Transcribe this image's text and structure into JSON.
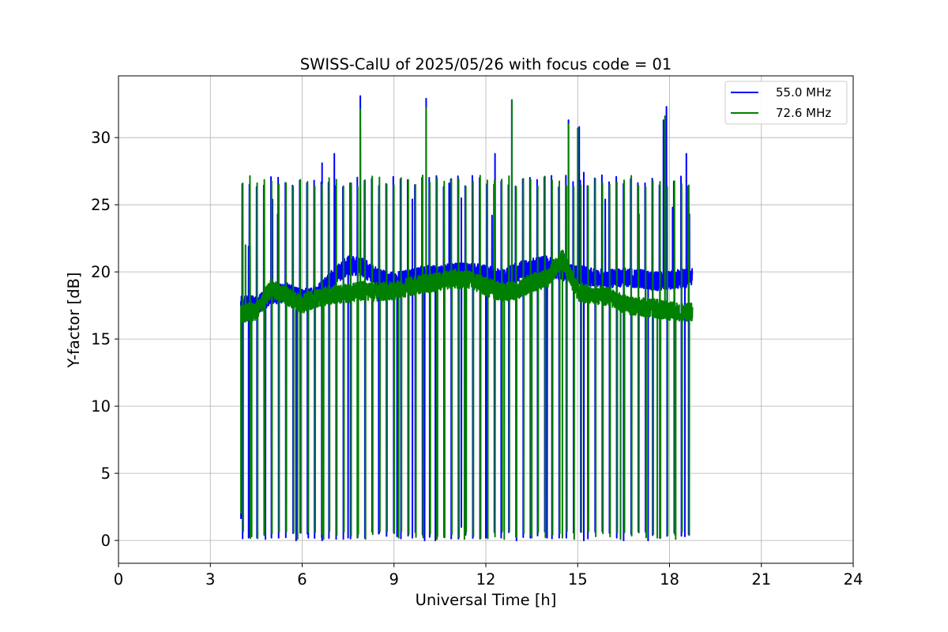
{
  "chart_data": {
    "type": "line",
    "title": "SWISS-CalU of 2025/05/26 with focus code = 01",
    "xlabel": "Universal Time [h]",
    "ylabel": "Y-factor [dB]",
    "xlim": [
      0,
      24
    ],
    "ylim": [
      -1.7,
      34.6
    ],
    "xticks": [
      0,
      3,
      6,
      9,
      12,
      15,
      18,
      21,
      24
    ],
    "yticks": [
      0,
      5,
      10,
      15,
      20,
      25,
      30
    ],
    "grid": true,
    "legend_position": "top-right",
    "x_range_of_data": [
      4.0,
      18.75
    ],
    "series": [
      {
        "name": "55.0 MHz",
        "color": "#0000ff",
        "baseline": [
          [
            4.0,
            17.5
          ],
          [
            4.5,
            17.5
          ],
          [
            5.0,
            18.2
          ],
          [
            5.5,
            18.5
          ],
          [
            6.0,
            18.0
          ],
          [
            6.5,
            18.3
          ],
          [
            7.0,
            19.5
          ],
          [
            7.5,
            20.5
          ],
          [
            8.0,
            20.3
          ],
          [
            8.5,
            19.5
          ],
          [
            9.0,
            19.3
          ],
          [
            9.5,
            19.5
          ],
          [
            10.0,
            19.8
          ],
          [
            10.5,
            19.8
          ],
          [
            11.0,
            20.0
          ],
          [
            11.5,
            20.0
          ],
          [
            12.0,
            19.8
          ],
          [
            12.5,
            19.5
          ],
          [
            13.0,
            20.0
          ],
          [
            13.5,
            20.3
          ],
          [
            14.0,
            20.5
          ],
          [
            14.5,
            20.0
          ],
          [
            15.0,
            19.8
          ],
          [
            15.5,
            19.6
          ],
          [
            16.0,
            19.5
          ],
          [
            16.5,
            19.6
          ],
          [
            17.0,
            19.5
          ],
          [
            17.5,
            19.3
          ],
          [
            18.0,
            19.4
          ],
          [
            18.5,
            19.5
          ],
          [
            18.75,
            19.6
          ]
        ],
        "peaks": [
          [
            4.05,
            24.3
          ],
          [
            4.25,
            21.9
          ],
          [
            5.03,
            25.4
          ],
          [
            5.2,
            24.3
          ],
          [
            6.65,
            28.1
          ],
          [
            7.05,
            28.8
          ],
          [
            7.6,
            26.6
          ],
          [
            7.9,
            33.1
          ],
          [
            8.5,
            25.0
          ],
          [
            9.6,
            25.4
          ],
          [
            10.05,
            32.9
          ],
          [
            10.8,
            26.6
          ],
          [
            11.2,
            25.5
          ],
          [
            12.2,
            24.2
          ],
          [
            12.3,
            28.8
          ],
          [
            12.85,
            32.8
          ],
          [
            14.7,
            31.3
          ],
          [
            15.05,
            30.8
          ],
          [
            15.2,
            27.4
          ],
          [
            15.9,
            25.4
          ],
          [
            17.0,
            24.3
          ],
          [
            17.8,
            31.3
          ],
          [
            17.9,
            32.3
          ],
          [
            18.1,
            24.8
          ],
          [
            18.55,
            28.8
          ],
          [
            18.65,
            24.3
          ]
        ],
        "dips": [
          [
            4.0,
            1.6
          ],
          [
            4.25,
            0.2
          ],
          [
            4.8,
            0.1
          ],
          [
            5.8,
            0.0
          ],
          [
            6.2,
            0.2
          ],
          [
            6.65,
            0.0
          ],
          [
            7.5,
            0.2
          ],
          [
            8.5,
            0.5
          ],
          [
            9.1,
            0.3
          ],
          [
            9.6,
            0.2
          ],
          [
            10.0,
            0.0
          ],
          [
            10.35,
            0.0
          ],
          [
            11.2,
            1.0
          ],
          [
            12.0,
            0.2
          ],
          [
            12.5,
            0.2
          ],
          [
            13.0,
            0.0
          ],
          [
            14.0,
            0.2
          ],
          [
            15.2,
            0.0
          ],
          [
            16.5,
            0.0
          ],
          [
            17.3,
            0.0
          ],
          [
            18.5,
            0.3
          ]
        ]
      },
      {
        "name": "72.6 MHz",
        "color": "#008000",
        "baseline": [
          [
            4.0,
            16.9
          ],
          [
            4.5,
            17.1
          ],
          [
            5.0,
            18.8
          ],
          [
            5.5,
            18.2
          ],
          [
            6.0,
            17.6
          ],
          [
            6.5,
            18.1
          ],
          [
            7.0,
            18.3
          ],
          [
            7.5,
            18.4
          ],
          [
            8.0,
            18.6
          ],
          [
            8.5,
            18.5
          ],
          [
            9.0,
            18.6
          ],
          [
            9.5,
            18.9
          ],
          [
            10.0,
            19.1
          ],
          [
            10.5,
            19.3
          ],
          [
            11.0,
            19.5
          ],
          [
            11.5,
            19.4
          ],
          [
            12.0,
            18.9
          ],
          [
            12.5,
            18.5
          ],
          [
            13.0,
            18.6
          ],
          [
            13.5,
            19.2
          ],
          [
            14.0,
            19.5
          ],
          [
            14.5,
            21.0
          ],
          [
            15.0,
            18.5
          ],
          [
            15.5,
            18.3
          ],
          [
            16.0,
            18.2
          ],
          [
            16.5,
            17.6
          ],
          [
            17.0,
            17.4
          ],
          [
            17.5,
            17.3
          ],
          [
            18.0,
            17.1
          ],
          [
            18.5,
            17.0
          ],
          [
            18.75,
            17.0
          ]
        ],
        "peaks": [
          [
            4.15,
            22.0
          ],
          [
            4.3,
            21.9
          ],
          [
            7.9,
            32.1
          ],
          [
            10.05,
            32.2
          ],
          [
            12.85,
            32.8
          ],
          [
            14.7,
            31.0
          ],
          [
            15.0,
            30.7
          ],
          [
            17.85,
            31.6
          ]
        ],
        "dips": [
          [
            4.0,
            2.0
          ],
          [
            4.35,
            0.3
          ],
          [
            5.85,
            0.1
          ],
          [
            6.7,
            0.1
          ],
          [
            7.8,
            0.2
          ],
          [
            9.15,
            0.2
          ],
          [
            10.4,
            0.1
          ],
          [
            11.3,
            0.1
          ],
          [
            12.6,
            0.1
          ],
          [
            13.5,
            0.2
          ],
          [
            14.5,
            0.2
          ],
          [
            16.4,
            0.1
          ],
          [
            17.6,
            0.2
          ],
          [
            18.2,
            0.1
          ]
        ]
      }
    ]
  }
}
